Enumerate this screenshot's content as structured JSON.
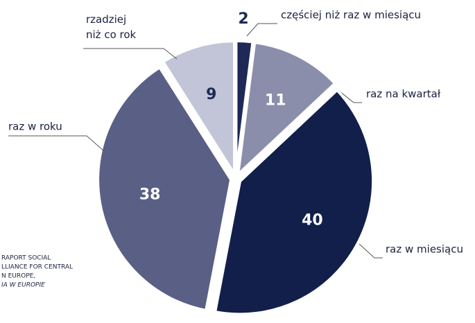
{
  "chart_data": {
    "type": "pie",
    "categories": [
      "częściej niż raz w miesiącu",
      "raz na kwartał",
      "raz w miesiącu",
      "raz w roku",
      "rzadziej niż co rok"
    ],
    "values": [
      2,
      11,
      40,
      38,
      9
    ],
    "colors": [
      "#1e2a55",
      "#8a8eab",
      "#111f4a",
      "#5a5f86",
      "#c2c4d7"
    ],
    "label_colors": [
      "#1e2a55",
      "#ffffff",
      "#ffffff",
      "#ffffff",
      "#1e2a55"
    ],
    "note": [
      "RAPORT SOCIAL",
      "LLIANCE FOR CENTRAL",
      "N EUROPE,",
      "IA W EUROPIE"
    ]
  }
}
